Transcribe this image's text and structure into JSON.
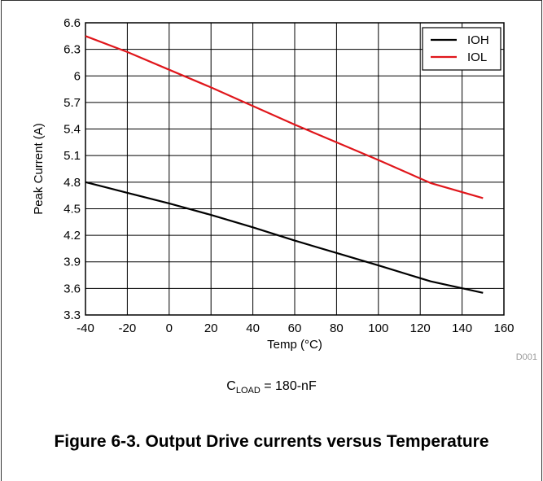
{
  "chart_data": {
    "type": "line",
    "xlabel": "Temp (°C)",
    "ylabel": "Peak Current (A)",
    "xlim": [
      -40,
      160
    ],
    "ylim": [
      3.3,
      6.6
    ],
    "xticks": [
      -40,
      -20,
      0,
      20,
      40,
      60,
      80,
      100,
      120,
      140,
      160
    ],
    "yticks": [
      3.3,
      3.6,
      3.9,
      4.2,
      4.5,
      4.8,
      5.1,
      5.4,
      5.7,
      6.0,
      6.3,
      6.6
    ],
    "ytick_labels": [
      "3.3",
      "3.6",
      "3.9",
      "4.2",
      "4.5",
      "4.8",
      "5.1",
      "5.4",
      "5.7",
      "6",
      "6.3",
      "6.6"
    ],
    "grid": true,
    "legend_position": "top-right",
    "series": [
      {
        "name": "IOH",
        "color": "#000000",
        "x": [
          -40,
          -20,
          0,
          20,
          40,
          60,
          80,
          100,
          125,
          150
        ],
        "y": [
          4.8,
          4.68,
          4.56,
          4.43,
          4.29,
          4.14,
          4.0,
          3.86,
          3.68,
          3.55
        ]
      },
      {
        "name": "IOL",
        "color": "#e0161b",
        "x": [
          -40,
          -20,
          0,
          20,
          40,
          60,
          80,
          100,
          125,
          150
        ],
        "y": [
          6.45,
          6.27,
          6.07,
          5.87,
          5.66,
          5.45,
          5.25,
          5.05,
          4.79,
          4.62
        ]
      }
    ],
    "code": "D001"
  },
  "conditions": {
    "c_symbol": "C",
    "c_subscript": "LOAD",
    "c_value": " = 180-nF"
  },
  "caption": "Figure 6-3. Output Drive currents versus Temperature"
}
